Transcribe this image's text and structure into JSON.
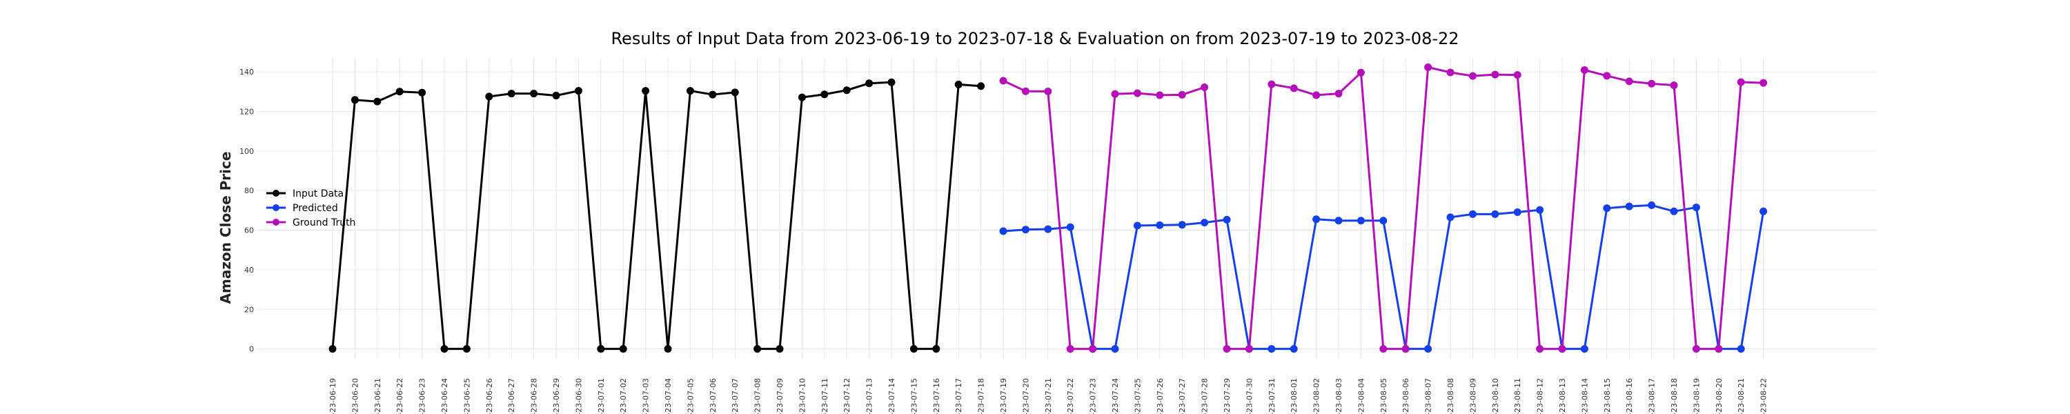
{
  "chart_data": {
    "type": "line",
    "title": "Results of Input Data from 2023-06-19 to 2023-07-18 & Evaluation on from 2023-07-19 to 2023-08-22",
    "xlabel": "",
    "ylabel": "Amazon Close Price",
    "ylim": [
      -5,
      147
    ],
    "y_ticks": [
      0,
      20,
      40,
      60,
      80,
      100,
      120,
      140
    ],
    "grid": true,
    "legend_position": "left",
    "categories": [
      "2023-06-19",
      "2023-06-20",
      "2023-06-21",
      "2023-06-22",
      "2023-06-23",
      "2023-06-24",
      "2023-06-25",
      "2023-06-26",
      "2023-06-27",
      "2023-06-28",
      "2023-06-29",
      "2023-06-30",
      "2023-07-01",
      "2023-07-02",
      "2023-07-03",
      "2023-07-04",
      "2023-07-05",
      "2023-07-06",
      "2023-07-07",
      "2023-07-08",
      "2023-07-09",
      "2023-07-10",
      "2023-07-11",
      "2023-07-12",
      "2023-07-13",
      "2023-07-14",
      "2023-07-15",
      "2023-07-16",
      "2023-07-17",
      "2023-07-18",
      "2023-07-19",
      "2023-07-20",
      "2023-07-21",
      "2023-07-22",
      "2023-07-23",
      "2023-07-24",
      "2023-07-25",
      "2023-07-26",
      "2023-07-27",
      "2023-07-28",
      "2023-07-29",
      "2023-07-30",
      "2023-07-31",
      "2023-08-01",
      "2023-08-02",
      "2023-08-03",
      "2023-08-04",
      "2023-08-05",
      "2023-08-06",
      "2023-08-07",
      "2023-08-08",
      "2023-08-09",
      "2023-08-10",
      "2023-08-11",
      "2023-08-12",
      "2023-08-13",
      "2023-08-14",
      "2023-08-15",
      "2023-08-16",
      "2023-08-17",
      "2023-08-18",
      "2023-08-19",
      "2023-08-20",
      "2023-08-21",
      "2023-08-22"
    ],
    "tick_labels": [
      "-23-06-19",
      "-23-06-20",
      "-23-06-21",
      "-23-06-22",
      "-23-06-23",
      "-23-06-24",
      "-23-06-25",
      "-23-06-26",
      "-23-06-27",
      "-23-06-28",
      "-23-06-29",
      "-23-06-30",
      "-23-07-01",
      "-23-07-02",
      "-23-07-03",
      "-23-07-04",
      "-23-07-05",
      "-23-07-06",
      "-23-07-07",
      "-23-07-08",
      "-23-07-09",
      "-23-07-10",
      "-23-07-11",
      "-23-07-12",
      "-23-07-13",
      "-23-07-14",
      "-23-07-15",
      "-23-07-16",
      "-23-07-17",
      "-23-07-18",
      "-23-07-19",
      "-23-07-20",
      "-23-07-21",
      "-23-07-22",
      "-23-07-23",
      "-23-07-24",
      "-23-07-25",
      "-23-07-26",
      "-23-07-27",
      "-23-07-28",
      "-23-07-29",
      "-23-07-30",
      "-23-07-31",
      "-23-08-01",
      "-23-08-02",
      "-23-08-03",
      "-23-08-04",
      "-23-08-05",
      "-23-08-06",
      "-23-08-07",
      "-23-08-08",
      "-23-08-09",
      "-23-08-10",
      "-23-08-11",
      "-23-08-12",
      "-23-08-13",
      "-23-08-14",
      "-23-08-15",
      "-23-08-16",
      "-23-08-17",
      "-23-08-18",
      "-23-08-19",
      "-23-08-20",
      "-23-08-21",
      "-23-08-22"
    ],
    "series": [
      {
        "name": "Input Data",
        "color": "#000000",
        "x": [
          "2023-06-19",
          "2023-06-20",
          "2023-06-21",
          "2023-06-22",
          "2023-06-23",
          "2023-06-24",
          "2023-06-25",
          "2023-06-26",
          "2023-06-27",
          "2023-06-28",
          "2023-06-29",
          "2023-06-30",
          "2023-07-01",
          "2023-07-02",
          "2023-07-03",
          "2023-07-04",
          "2023-07-05",
          "2023-07-06",
          "2023-07-07",
          "2023-07-08",
          "2023-07-09",
          "2023-07-10",
          "2023-07-11",
          "2023-07-12",
          "2023-07-13",
          "2023-07-14",
          "2023-07-15",
          "2023-07-16",
          "2023-07-17",
          "2023-07-18"
        ],
        "values": [
          0,
          125.8,
          125.0,
          130.0,
          129.5,
          0,
          0,
          127.5,
          129.0,
          129.0,
          128.0,
          130.4,
          0,
          0,
          130.4,
          0,
          130.4,
          128.5,
          129.6,
          0,
          0,
          127.1,
          128.6,
          130.7,
          134.2,
          134.7,
          0,
          0,
          133.6,
          132.8
        ]
      },
      {
        "name": "Predicted",
        "color": "#1340e8",
        "x": [
          "2023-07-19",
          "2023-07-20",
          "2023-07-21",
          "2023-07-22",
          "2023-07-23",
          "2023-07-24",
          "2023-07-25",
          "2023-07-26",
          "2023-07-27",
          "2023-07-28",
          "2023-07-29",
          "2023-07-30",
          "2023-07-31",
          "2023-08-01",
          "2023-08-02",
          "2023-08-03",
          "2023-08-04",
          "2023-08-05",
          "2023-08-06",
          "2023-08-07",
          "2023-08-08",
          "2023-08-09",
          "2023-08-10",
          "2023-08-11",
          "2023-08-12",
          "2023-08-13",
          "2023-08-14",
          "2023-08-15",
          "2023-08-16",
          "2023-08-17",
          "2023-08-18",
          "2023-08-19",
          "2023-08-20",
          "2023-08-21",
          "2023-08-22"
        ],
        "values": [
          59.5,
          60.3,
          60.5,
          61.5,
          0,
          0,
          62.3,
          62.5,
          62.7,
          63.8,
          65.3,
          0,
          0,
          0,
          65.5,
          64.8,
          64.8,
          64.8,
          0,
          0,
          66.5,
          68.1,
          68.1,
          69.1,
          70.2,
          0,
          0,
          71.1,
          72.0,
          72.6,
          69.5,
          71.5,
          0,
          0,
          69.5
        ]
      },
      {
        "name": "Ground Truth",
        "color": "#b40fb8",
        "x": [
          "2023-07-19",
          "2023-07-20",
          "2023-07-21",
          "2023-07-22",
          "2023-07-23",
          "2023-07-24",
          "2023-07-25",
          "2023-07-26",
          "2023-07-27",
          "2023-07-28",
          "2023-07-29",
          "2023-07-30",
          "2023-07-31",
          "2023-08-01",
          "2023-08-02",
          "2023-08-03",
          "2023-08-04",
          "2023-08-05",
          "2023-08-06",
          "2023-08-07",
          "2023-08-08",
          "2023-08-09",
          "2023-08-10",
          "2023-08-11",
          "2023-08-12",
          "2023-08-13",
          "2023-08-14",
          "2023-08-15",
          "2023-08-16",
          "2023-08-17",
          "2023-08-18",
          "2023-08-19",
          "2023-08-20",
          "2023-08-21",
          "2023-08-22"
        ],
        "values": [
          135.5,
          130.2,
          130.1,
          0,
          0,
          128.8,
          129.2,
          128.2,
          128.4,
          132.2,
          0,
          0,
          133.7,
          131.7,
          128.2,
          129.0,
          139.6,
          0,
          0,
          142.3,
          139.7,
          137.9,
          138.6,
          138.4,
          0,
          0,
          140.9,
          138.0,
          135.2,
          134.0,
          133.2,
          0,
          0,
          134.8,
          134.4
        ]
      }
    ]
  }
}
